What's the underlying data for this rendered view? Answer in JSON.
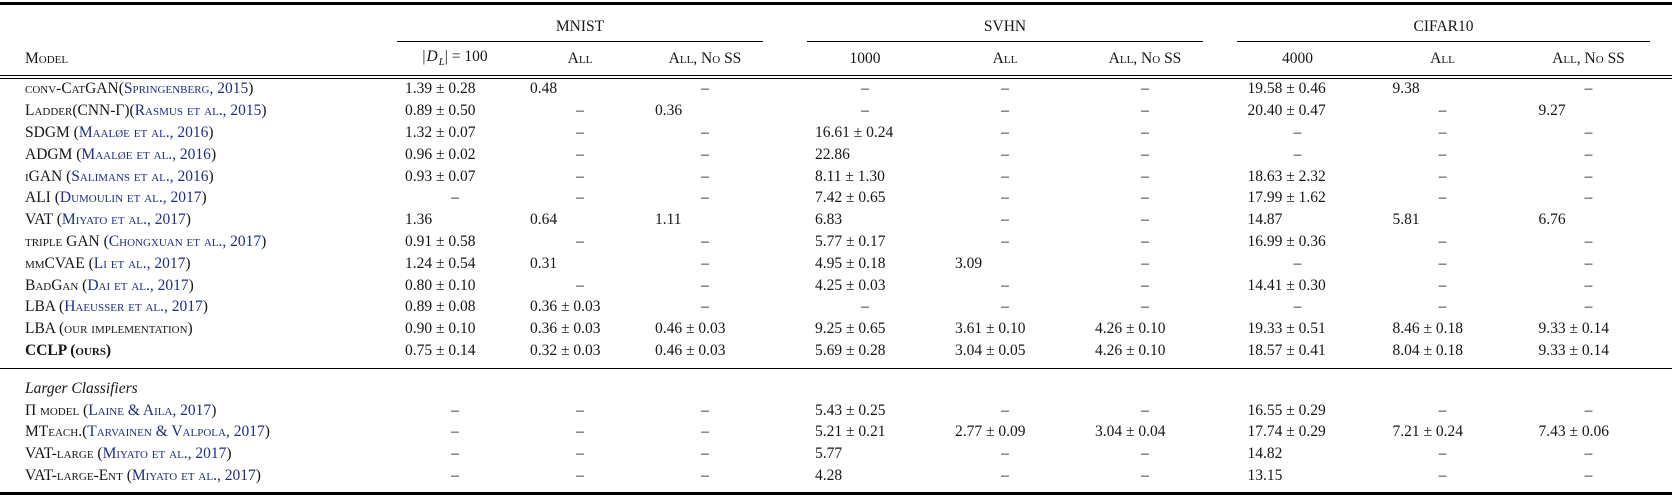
{
  "colors": {
    "citation_link": "#1f2f7d",
    "text": "#161616",
    "rule": "#000000"
  },
  "header": {
    "model": "Model",
    "dl": {
      "open": "|",
      "letter": "D",
      "sub": "L",
      "rest": "| = 100"
    },
    "groups": [
      {
        "label": "MNIST",
        "cols": [
          "|DL| = 100",
          "All",
          "All, No SS"
        ]
      },
      {
        "label": "SVHN",
        "cols": [
          "1000",
          "All",
          "All, No SS"
        ]
      },
      {
        "label": "CIFAR10",
        "cols": [
          "4000",
          "All",
          "All, No SS"
        ]
      }
    ]
  },
  "sections": [
    {
      "heading": "",
      "rows": [
        {
          "name": "conv-CatGAN(",
          "cite": "Springenberg, 2015",
          "suffix": ")",
          "bold": false,
          "values": [
            "1.39 ± 0.28",
            "0.48",
            "–",
            "–",
            "–",
            "–",
            "19.58 ± 0.46",
            "9.38",
            "–"
          ]
        },
        {
          "name": "Ladder(CNN-Γ)(",
          "cite": "Rasmus et al., 2015",
          "suffix": ")",
          "bold": false,
          "values": [
            "0.89 ± 0.50",
            "–",
            "0.36",
            "–",
            "–",
            "–",
            "20.40 ± 0.47",
            "–",
            "9.27"
          ]
        },
        {
          "name": "SDGM (",
          "cite": "Maaløe et al., 2016",
          "suffix": ")",
          "bold": false,
          "values": [
            "1.32 ± 0.07",
            "–",
            "–",
            "16.61 ± 0.24",
            "–",
            "–",
            "–",
            "–",
            "–"
          ]
        },
        {
          "name": "ADGM (",
          "cite": "Maaløe et al., 2016",
          "suffix": ")",
          "bold": false,
          "values": [
            "0.96 ± 0.02",
            "–",
            "–",
            "22.86",
            "–",
            "–",
            "–",
            "–",
            "–"
          ]
        },
        {
          "name": "iGAN (",
          "cite": "Salimans et al., 2016",
          "suffix": ")",
          "bold": false,
          "values": [
            "0.93 ± 0.07",
            "–",
            "–",
            "8.11 ± 1.30",
            "–",
            "–",
            "18.63 ± 2.32",
            "–",
            "–"
          ]
        },
        {
          "name": "ALI (",
          "cite": "Dumoulin et al., 2017",
          "suffix": ")",
          "bold": false,
          "values": [
            "–",
            "–",
            "–",
            "7.42 ± 0.65",
            "–",
            "–",
            "17.99 ± 1.62",
            "–",
            "–"
          ]
        },
        {
          "name": "VAT (",
          "cite": "Miyato et al., 2017",
          "suffix": ")",
          "bold": false,
          "values": [
            "1.36",
            "0.64",
            "1.11",
            "6.83",
            "–",
            "–",
            "14.87",
            "5.81",
            "6.76"
          ]
        },
        {
          "name": "triple GAN (",
          "cite": "Chongxuan et al., 2017",
          "suffix": ")",
          "bold": false,
          "values": [
            "0.91 ± 0.58",
            "–",
            "–",
            "5.77 ± 0.17",
            "–",
            "–",
            "16.99 ± 0.36",
            "–",
            "–"
          ]
        },
        {
          "name": "mmCVAE (",
          "cite": "Li et al., 2017",
          "suffix": ")",
          "bold": false,
          "values": [
            "1.24 ± 0.54",
            "0.31",
            "–",
            "4.95 ± 0.18",
            "3.09",
            "–",
            "–",
            "–",
            "–"
          ]
        },
        {
          "name": "BadGan (",
          "cite": "Dai et al., 2017",
          "suffix": ")",
          "bold": false,
          "values": [
            "0.80 ± 0.10",
            "–",
            "–",
            "4.25 ± 0.03",
            "–",
            "–",
            "14.41 ± 0.30",
            "–",
            "–"
          ]
        },
        {
          "name": "LBA (",
          "cite": "Haeusser et al., 2017",
          "suffix": ")",
          "bold": false,
          "values": [
            "0.89 ± 0.08",
            "0.36 ± 0.03",
            "–",
            "–",
            "–",
            "–",
            "–",
            "–",
            "–"
          ]
        },
        {
          "name": "LBA (our implementation)",
          "cite": "",
          "suffix": "",
          "bold": false,
          "values": [
            "0.90 ± 0.10",
            "0.36 ± 0.03",
            "0.46 ± 0.03",
            "9.25 ± 0.65",
            "3.61 ± 0.10",
            "4.26 ± 0.10",
            "19.33 ± 0.51",
            "8.46 ± 0.18",
            "9.33 ± 0.14"
          ]
        },
        {
          "name": "CCLP (ours)",
          "cite": "",
          "suffix": "",
          "bold": true,
          "values": [
            "0.75 ± 0.14",
            "0.32 ± 0.03",
            "0.46 ± 0.03",
            "5.69 ± 0.28",
            "3.04 ± 0.05",
            "4.26 ± 0.10",
            "18.57 ± 0.41",
            "8.04 ± 0.18",
            "9.33 ± 0.14"
          ]
        }
      ]
    },
    {
      "heading": "Larger Classifiers",
      "rows": [
        {
          "name": "Π model (",
          "cite": "Laine & Aila, 2017",
          "suffix": ")",
          "bold": false,
          "values": [
            "–",
            "–",
            "–",
            "5.43 ± 0.25",
            "–",
            "–",
            "16.55 ± 0.29",
            "–",
            "–"
          ]
        },
        {
          "name": "MTeach.(",
          "cite": "Tarvainen & Valpola, 2017",
          "suffix": ")",
          "bold": false,
          "values": [
            "–",
            "–",
            "–",
            "5.21 ± 0.21",
            "2.77 ± 0.09",
            "3.04 ± 0.04",
            "17.74 ± 0.29",
            "7.21 ± 0.24",
            "7.43 ± 0.06"
          ]
        },
        {
          "name": "VAT-large (",
          "cite": "Miyato et al., 2017",
          "suffix": ")",
          "bold": false,
          "values": [
            "–",
            "–",
            "–",
            "5.77",
            "–",
            "–",
            "14.82",
            "–",
            "–"
          ]
        },
        {
          "name": "VAT-large-Ent (",
          "cite": "Miyato et al., 2017",
          "suffix": ")",
          "bold": false,
          "values": [
            "–",
            "–",
            "–",
            "4.28",
            "–",
            "–",
            "13.15",
            "–",
            "–"
          ]
        }
      ]
    }
  ]
}
